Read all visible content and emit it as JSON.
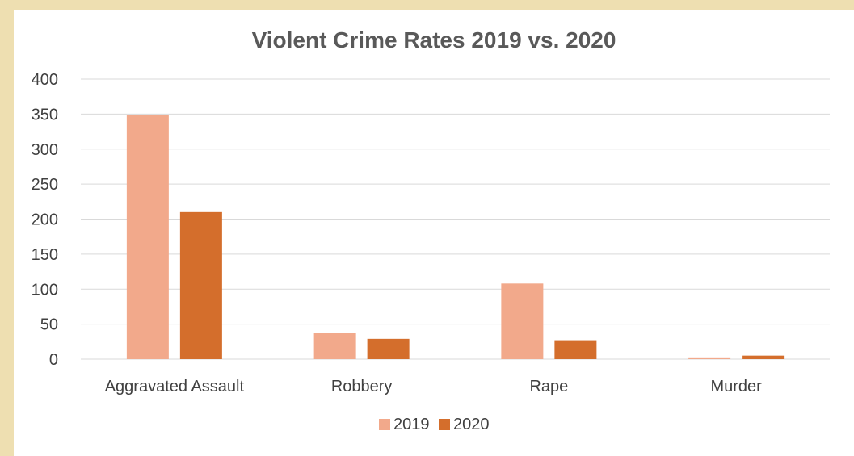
{
  "chart_data": {
    "type": "bar",
    "title": "Violent Crime Rates 2019 vs. 2020",
    "xlabel": "",
    "ylabel": "",
    "categories": [
      "Aggravated Assault",
      "Robbery",
      "Rape",
      "Murder"
    ],
    "series": [
      {
        "name": "2019",
        "values": [
          349,
          37,
          108,
          2.5
        ],
        "color": "#f2a98b"
      },
      {
        "name": "2020",
        "values": [
          210,
          29,
          27,
          5
        ],
        "color": "#d46e2c"
      }
    ],
    "ylim": [
      0,
      400
    ],
    "yticks": [
      "0",
      "50",
      "100",
      "150",
      "200",
      "250",
      "300",
      "350",
      "400"
    ],
    "grid": true,
    "legend_position": "bottom"
  }
}
